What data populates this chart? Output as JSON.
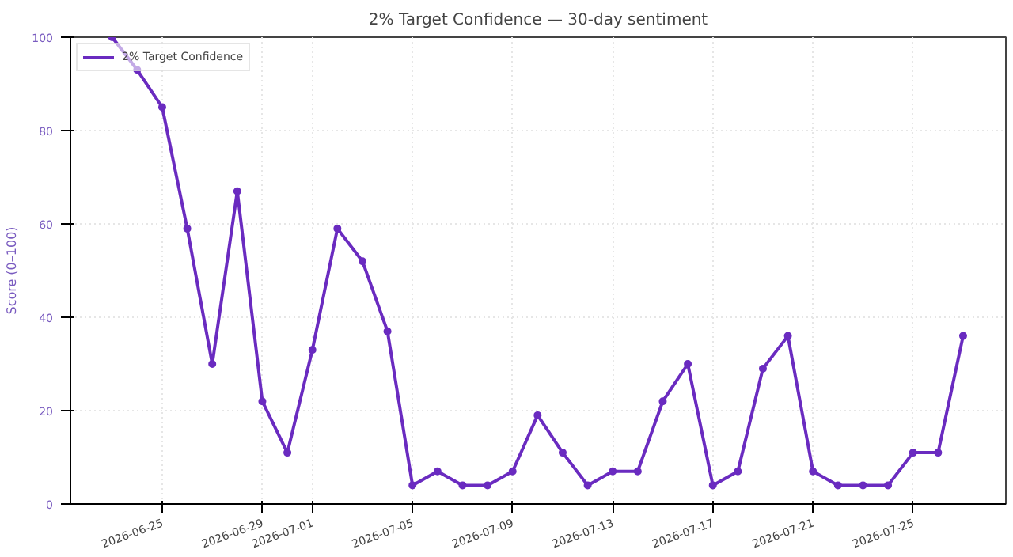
{
  "chart_data": {
    "type": "line",
    "title": "2% Target Confidence — 30-day sentiment",
    "ylabel": "Score (0–100)",
    "x": [
      "2026-06-23",
      "2026-06-24",
      "2026-06-25",
      "2026-06-26",
      "2026-06-27",
      "2026-06-28",
      "2026-06-29",
      "2026-06-30",
      "2026-07-01",
      "2026-07-02",
      "2026-07-03",
      "2026-07-04",
      "2026-07-05",
      "2026-07-06",
      "2026-07-07",
      "2026-07-08",
      "2026-07-09",
      "2026-07-10",
      "2026-07-11",
      "2026-07-12",
      "2026-07-13",
      "2026-07-14",
      "2026-07-15",
      "2026-07-16",
      "2026-07-17",
      "2026-07-18",
      "2026-07-19",
      "2026-07-20",
      "2026-07-21",
      "2026-07-22",
      "2026-07-23",
      "2026-07-24",
      "2026-07-25",
      "2026-07-26",
      "2026-07-27"
    ],
    "series": [
      {
        "name": "2% Target Confidence",
        "color": "#6a2bc0",
        "values": [
          100,
          93,
          85,
          59,
          30,
          67,
          22,
          11,
          33,
          59,
          52,
          37,
          4,
          7,
          4,
          4,
          7,
          19,
          11,
          4,
          7,
          7,
          22,
          30,
          4,
          7,
          29,
          36,
          7,
          4,
          4,
          4,
          11,
          11,
          36
        ]
      }
    ],
    "xlim": [
      "2026-06-21T08:00",
      "2026-07-28T17:00"
    ],
    "xticks": [
      "2026-06-25",
      "2026-06-29",
      "2026-07-01",
      "2026-07-05",
      "2026-07-09",
      "2026-07-13",
      "2026-07-17",
      "2026-07-21",
      "2026-07-25"
    ],
    "ylim": [
      0,
      100
    ],
    "yticks": [
      0,
      20,
      40,
      60,
      80,
      100
    ],
    "grid": true,
    "legend": "top left",
    "marker": "circle",
    "line_style": "solid"
  }
}
